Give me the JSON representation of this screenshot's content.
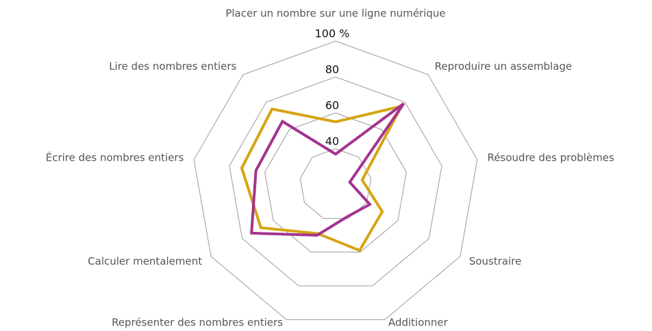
{
  "chart_data": {
    "type": "radar",
    "categories": [
      "Placer un nombre sur une ligne numérique",
      "Reproduire un assemblage",
      "Résoudre des problèmes",
      "Soustraire",
      "Additionner",
      "Représenter des nombres entiers",
      "Calculer mentalement",
      "Écrire des nombres entiers",
      "Lire des nombres entiers"
    ],
    "series": [
      {
        "color": "#d6a414",
        "values": [
          55,
          77,
          35,
          50,
          59,
          49,
          68,
          73,
          75
        ]
      },
      {
        "color": "#a3338f",
        "values": [
          37,
          79,
          28,
          42,
          39,
          50,
          74,
          65,
          66
        ]
      }
    ],
    "rlim": [
      20,
      100
    ],
    "rticks": [
      40,
      60,
      80,
      {
        "value": 100,
        "label": "100 %"
      }
    ],
    "grid": true
  }
}
